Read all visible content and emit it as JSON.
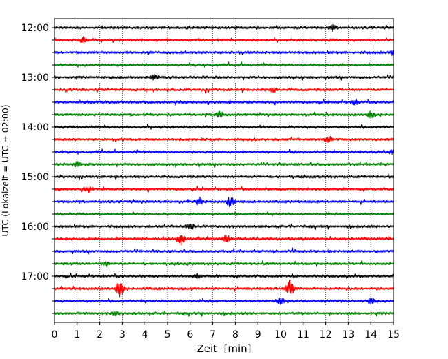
{
  "chart_data": {
    "type": "line",
    "title": "",
    "xlabel": "Zeit  [min]",
    "ylabel": "UTC (Lokalzeit = UTC + 02:00)",
    "xlim": [
      0,
      15
    ],
    "x_ticks": [
      0,
      1,
      2,
      3,
      4,
      5,
      6,
      7,
      8,
      9,
      10,
      11,
      12,
      13,
      14,
      15
    ],
    "x_grid": true,
    "trace_interval_min": 15,
    "y_ticks": [
      "12:00",
      "13:00",
      "14:00",
      "15:00",
      "16:00",
      "17:00"
    ],
    "trace_colors": [
      "#000000",
      "#ff0000",
      "#0000ff",
      "#008000"
    ],
    "series": [
      {
        "start": "12:00",
        "color": "#000000",
        "events": [
          {
            "t": 12.3,
            "amp": 0.4
          }
        ]
      },
      {
        "start": "12:15",
        "color": "#ff0000",
        "events": [
          {
            "t": 1.3,
            "amp": 0.5
          }
        ]
      },
      {
        "start": "12:30",
        "color": "#0000ff",
        "events": [
          {
            "t": 15.0,
            "amp": 0.4
          }
        ]
      },
      {
        "start": "12:45",
        "color": "#008000",
        "events": []
      },
      {
        "start": "13:00",
        "color": "#000000",
        "events": [
          {
            "t": 4.4,
            "amp": 0.4
          }
        ]
      },
      {
        "start": "13:15",
        "color": "#ff0000",
        "events": [
          {
            "t": 9.7,
            "amp": 0.3
          }
        ]
      },
      {
        "start": "13:30",
        "color": "#0000ff",
        "events": [
          {
            "t": 13.3,
            "amp": 0.4
          }
        ]
      },
      {
        "start": "13:45",
        "color": "#008000",
        "events": [
          {
            "t": 7.3,
            "amp": 0.5
          },
          {
            "t": 14.0,
            "amp": 0.5
          }
        ]
      },
      {
        "start": "14:00",
        "color": "#000000",
        "events": []
      },
      {
        "start": "14:15",
        "color": "#ff0000",
        "events": [
          {
            "t": 12.1,
            "amp": 0.5
          }
        ]
      },
      {
        "start": "14:30",
        "color": "#0000ff",
        "events": [
          {
            "t": 15.0,
            "amp": 0.4
          }
        ]
      },
      {
        "start": "14:45",
        "color": "#008000",
        "events": [
          {
            "t": 1.0,
            "amp": 0.3
          }
        ]
      },
      {
        "start": "15:00",
        "color": "#000000",
        "events": []
      },
      {
        "start": "15:15",
        "color": "#ff0000",
        "events": [
          {
            "t": 1.5,
            "amp": 0.4
          }
        ]
      },
      {
        "start": "15:30",
        "color": "#0000ff",
        "events": [
          {
            "t": 6.4,
            "amp": 0.5
          },
          {
            "t": 7.8,
            "amp": 0.8
          }
        ]
      },
      {
        "start": "15:45",
        "color": "#008000",
        "events": []
      },
      {
        "start": "16:00",
        "color": "#000000",
        "events": [
          {
            "t": 6.0,
            "amp": 0.5
          }
        ]
      },
      {
        "start": "16:15",
        "color": "#ff0000",
        "events": [
          {
            "t": 5.6,
            "amp": 0.9
          },
          {
            "t": 7.6,
            "amp": 0.6
          }
        ]
      },
      {
        "start": "16:30",
        "color": "#0000ff",
        "events": []
      },
      {
        "start": "16:45",
        "color": "#008000",
        "events": [
          {
            "t": 2.3,
            "amp": 0.3
          }
        ]
      },
      {
        "start": "17:00",
        "color": "#000000",
        "events": [
          {
            "t": 6.3,
            "amp": 0.3
          }
        ]
      },
      {
        "start": "17:15",
        "color": "#ff0000",
        "events": [
          {
            "t": 2.9,
            "amp": 1.3
          },
          {
            "t": 10.4,
            "amp": 1.3
          }
        ]
      },
      {
        "start": "17:30",
        "color": "#0000ff",
        "events": [
          {
            "t": 10.0,
            "amp": 0.5
          },
          {
            "t": 14.0,
            "amp": 0.4
          }
        ]
      },
      {
        "start": "17:45",
        "color": "#008000",
        "events": [
          {
            "t": 2.7,
            "amp": 0.3
          }
        ]
      }
    ]
  }
}
